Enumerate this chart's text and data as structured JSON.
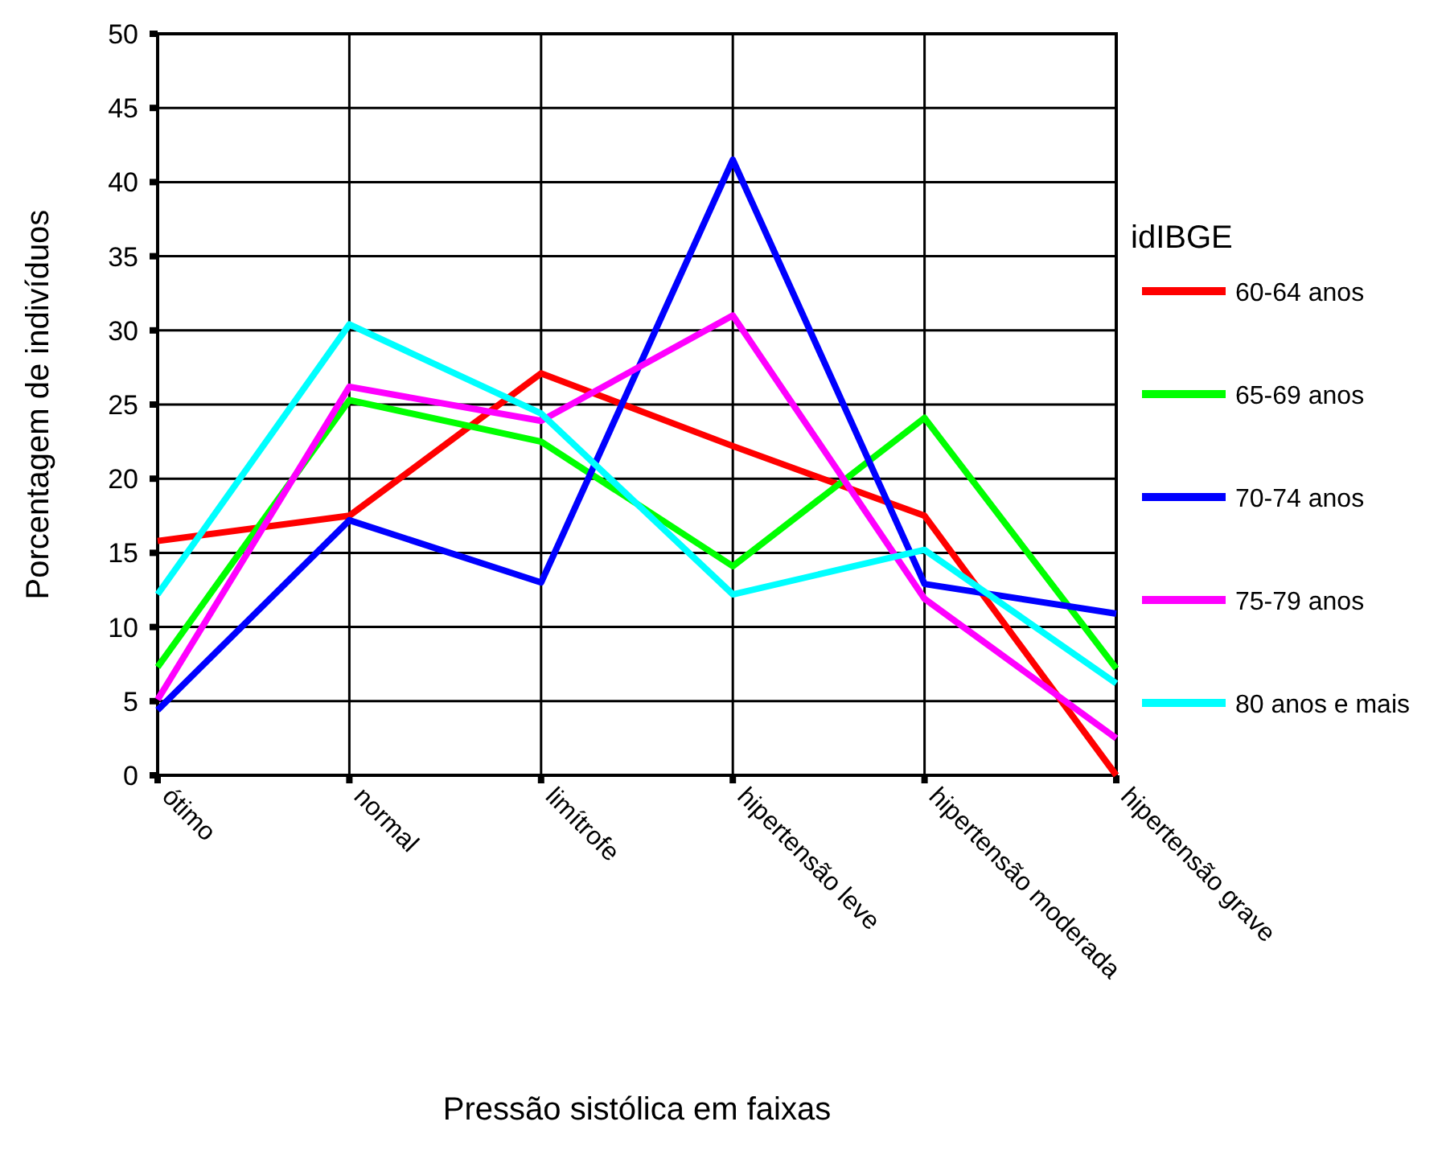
{
  "chart_data": {
    "type": "line",
    "xlabel": "Pressão sistólica em faixas",
    "ylabel": "Porcentagem de indivíduos",
    "legend_title": "idIBGE",
    "categories": [
      "ótimo",
      "normal",
      "limítrofe",
      "hipertensão leve",
      "hipertensão moderada",
      "hipertensão grave"
    ],
    "series": [
      {
        "name": "60-64 anos",
        "color": "#ff0000",
        "values": [
          15.8,
          17.5,
          27.1,
          22.2,
          17.5,
          0
        ]
      },
      {
        "name": "65-69 anos",
        "color": "#00ff00",
        "values": [
          7.3,
          25.3,
          22.5,
          14.1,
          24.1,
          7.2
        ]
      },
      {
        "name": "70-74 anos",
        "color": "#0000ff",
        "values": [
          4.4,
          17.2,
          13,
          41.5,
          12.9,
          10.9
        ]
      },
      {
        "name": "75-79 anos",
        "color": "#ff00ff",
        "values": [
          5.1,
          26.2,
          23.9,
          31,
          11.9,
          2.5
        ]
      },
      {
        "name": "80 anos e mais",
        "color": "#00ffff",
        "values": [
          12.2,
          30.4,
          24.4,
          12.2,
          15.2,
          6.2
        ]
      }
    ],
    "ylim": [
      0,
      50
    ],
    "yticks": [
      0,
      5,
      10,
      15,
      20,
      25,
      30,
      35,
      40,
      45,
      50
    ],
    "grid": true,
    "legend": "right",
    "line_style": "solid",
    "marker": "none"
  }
}
